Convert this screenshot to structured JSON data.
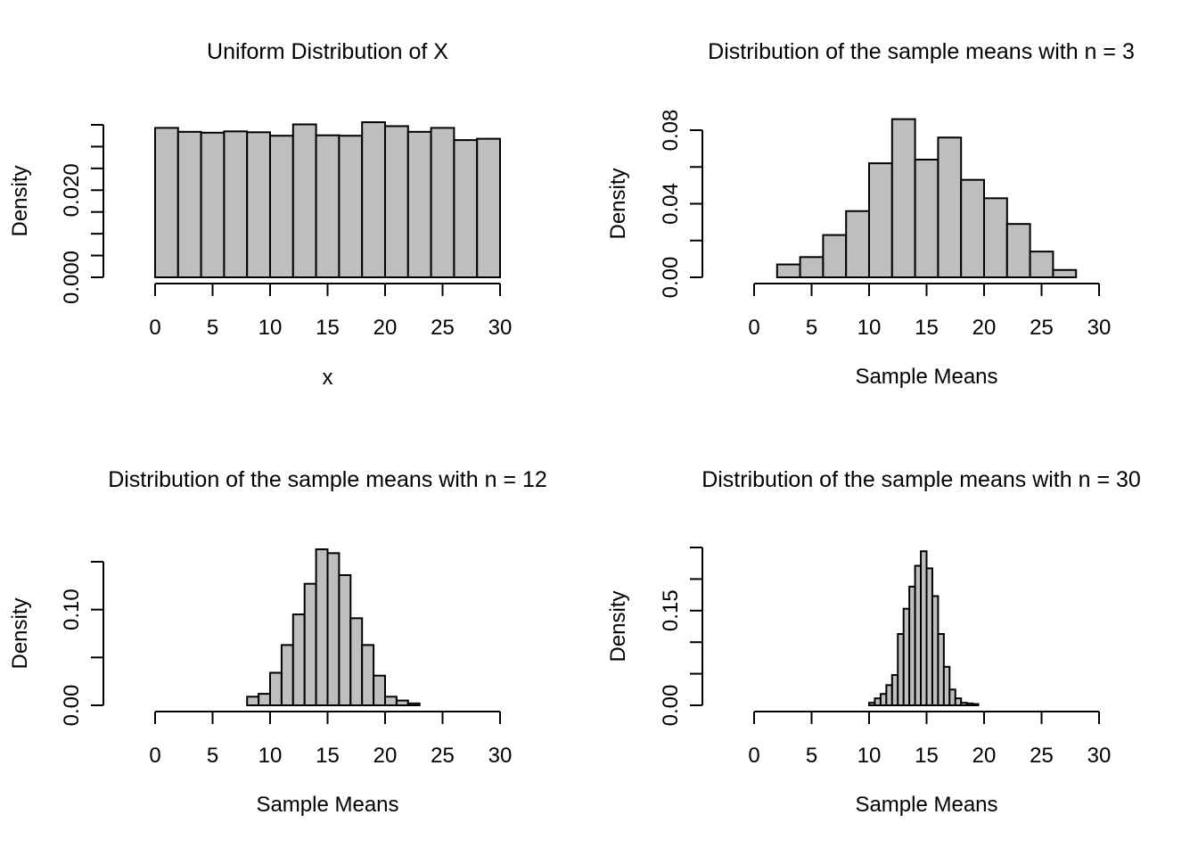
{
  "chart_data": [
    {
      "type": "bar",
      "title": "Uniform Distribution of X",
      "xlabel": "x",
      "ylabel": "Density",
      "xlim": [
        0,
        30
      ],
      "ylim": [
        0,
        0.035
      ],
      "x_ticks": [
        0,
        5,
        10,
        15,
        20,
        25,
        30
      ],
      "y_ticks": [
        0,
        0.005,
        0.01,
        0.015,
        0.02,
        0.025,
        0.03,
        0.035
      ],
      "y_tick_labels": [
        "0.000",
        "",
        "",
        "",
        "0.020",
        "",
        "",
        ""
      ],
      "bin_edges": [
        0,
        2,
        4,
        6,
        8,
        10,
        12,
        14,
        16,
        18,
        20,
        22,
        24,
        26,
        28,
        30
      ],
      "values": [
        0.0343,
        0.0334,
        0.0332,
        0.0335,
        0.0333,
        0.0325,
        0.0351,
        0.0326,
        0.0325,
        0.0356,
        0.0347,
        0.0334,
        0.0343,
        0.0315,
        0.0318
      ]
    },
    {
      "type": "bar",
      "title": "Distribution of the sample means with n = 3",
      "xlabel": "Sample Means",
      "ylabel": "Density",
      "xlim": [
        0,
        30
      ],
      "ylim": [
        0,
        0.08
      ],
      "x_ticks": [
        0,
        5,
        10,
        15,
        20,
        25,
        30
      ],
      "y_ticks": [
        0,
        0.02,
        0.04,
        0.06,
        0.08
      ],
      "y_tick_labels": [
        "0.00",
        "",
        "0.04",
        "",
        "0.08"
      ],
      "bin_edges": [
        2,
        4,
        6,
        8,
        10,
        12,
        14,
        16,
        18,
        20,
        22,
        24,
        26,
        28
      ],
      "values": [
        0.007,
        0.011,
        0.023,
        0.036,
        0.062,
        0.086,
        0.064,
        0.076,
        0.053,
        0.043,
        0.029,
        0.014,
        0.004
      ]
    },
    {
      "type": "bar",
      "title": "Distribution of the sample means with n = 12",
      "xlabel": "Sample Means",
      "ylabel": "Density",
      "xlim": [
        0,
        30
      ],
      "ylim": [
        0,
        0.15
      ],
      "x_ticks": [
        0,
        5,
        10,
        15,
        20,
        25,
        30
      ],
      "y_ticks": [
        0,
        0.05,
        0.1,
        0.15
      ],
      "y_tick_labels": [
        "0.00",
        "",
        "0.10",
        ""
      ],
      "bin_edges": [
        8,
        9,
        10,
        11,
        12,
        13,
        14,
        15,
        16,
        17,
        18,
        19,
        20,
        21,
        22,
        23
      ],
      "values": [
        0.009,
        0.012,
        0.034,
        0.063,
        0.095,
        0.127,
        0.163,
        0.159,
        0.136,
        0.091,
        0.063,
        0.031,
        0.009,
        0.005,
        0.002
      ]
    },
    {
      "type": "bar",
      "title": "Distribution of the sample means with n = 30",
      "xlabel": "Sample Means",
      "ylabel": "Density",
      "xlim": [
        0,
        30
      ],
      "ylim": [
        0,
        0.25
      ],
      "x_ticks": [
        0,
        5,
        10,
        15,
        20,
        25,
        30
      ],
      "y_ticks": [
        0,
        0.05,
        0.1,
        0.15,
        0.2,
        0.25
      ],
      "y_tick_labels": [
        "0.00",
        "",
        "",
        "0.15",
        "",
        ""
      ],
      "bin_edges": [
        10,
        10.5,
        11,
        11.5,
        12,
        12.5,
        13,
        13.5,
        14,
        14.5,
        15,
        15.5,
        16,
        16.5,
        17,
        17.5,
        18,
        18.5,
        19,
        19.5
      ],
      "values": [
        0.004,
        0.011,
        0.018,
        0.032,
        0.048,
        0.113,
        0.153,
        0.188,
        0.221,
        0.244,
        0.217,
        0.173,
        0.113,
        0.061,
        0.025,
        0.011,
        0.004,
        0.003,
        0.002
      ]
    }
  ]
}
